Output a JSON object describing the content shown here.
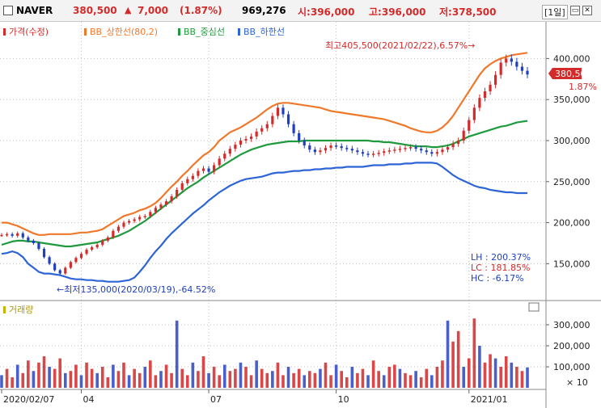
{
  "header": {
    "name": "NAVER",
    "price": "380,500",
    "arrow": "▲",
    "change": "7,000",
    "change_pct": "(1.87%)",
    "volume": "969,276",
    "open": "시:396,000",
    "high": "고:396,000",
    "low": "저:378,500",
    "period_button": "[1일]",
    "min_icon": "minimize-icon",
    "max_icon": "maximize-icon",
    "close_icon": "close-icon"
  },
  "colors": {
    "up": "#d42a2a",
    "down": "#1f3fbf",
    "upper_band": "#f0782a",
    "middle_band": "#1f9a3c",
    "lower_band": "#2d64d6",
    "volume_bar": "#d94848",
    "volume_bar_blue": "#4a60c8"
  },
  "legend": {
    "price": "가격(수정)",
    "upper": "BB_상한선(80,2)",
    "middle": "BB_중심선",
    "lower": "BB_하한선"
  },
  "annotations": {
    "max_label": "최고405,500(2021/02/22),6.57%→",
    "min_label": "←최저135,000(2020/03/19),-64.52%",
    "current_price_tag": "380,500",
    "current_pct_tag": "1.87%",
    "lh": "LH :  200.37%",
    "lc": "LC :  181.85%",
    "hc": "HC :   -6.17%"
  },
  "volume_panel": {
    "label": "거래량",
    "unit": "× 10",
    "y_ticks": [
      "300,000",
      "200,000",
      "100,000"
    ]
  },
  "chart_data": {
    "type": "line",
    "y_ticks": [
      "400,000",
      "350,000",
      "300,000",
      "250,000",
      "200,000",
      "150,000"
    ],
    "x_tick_labels": [
      "2020/02/07",
      "04",
      "07",
      "10",
      "2021/01"
    ],
    "ylim": [
      110000,
      425000
    ],
    "volume_ylim": [
      0,
      350000
    ],
    "price_close": [
      185000,
      186000,
      184000,
      187000,
      182000,
      178000,
      175000,
      168000,
      158000,
      150000,
      142000,
      138000,
      145000,
      152000,
      157000,
      162000,
      167000,
      170000,
      173000,
      178000,
      182000,
      190000,
      195000,
      200000,
      202000,
      204000,
      207000,
      208000,
      213000,
      218000,
      222000,
      226000,
      232000,
      240000,
      248000,
      253000,
      257000,
      263000,
      266000,
      262000,
      270000,
      278000,
      284000,
      290000,
      295000,
      300000,
      302000,
      305000,
      311000,
      315000,
      320000,
      330000,
      340000,
      332000,
      320000,
      309000,
      300000,
      294000,
      289000,
      286000,
      288000,
      291000,
      294000,
      293000,
      291000,
      290000,
      288000,
      286000,
      284000,
      283000,
      284000,
      285000,
      287000,
      288000,
      289000,
      290000,
      291000,
      292000,
      290000,
      288000,
      286000,
      284000,
      286000,
      289000,
      292000,
      296000,
      300000,
      312000,
      325000,
      340000,
      352000,
      360000,
      368000,
      380000,
      395000,
      400000,
      396000,
      390000,
      385000,
      380500
    ],
    "upper_band": [
      200000,
      200000,
      198000,
      196000,
      193000,
      190000,
      187000,
      185000,
      185000,
      186000,
      186000,
      186000,
      186000,
      186000,
      187000,
      188000,
      188000,
      189000,
      190000,
      192000,
      196000,
      200000,
      204000,
      208000,
      210000,
      212000,
      215000,
      217000,
      220000,
      224000,
      230000,
      237000,
      244000,
      250000,
      257000,
      263000,
      270000,
      276000,
      282000,
      286000,
      292000,
      300000,
      305000,
      310000,
      313000,
      316000,
      320000,
      324000,
      328000,
      333000,
      338000,
      342000,
      345000,
      346000,
      346000,
      345000,
      344000,
      343000,
      342000,
      341000,
      340000,
      338000,
      336000,
      335000,
      334000,
      333000,
      332000,
      331000,
      330000,
      329000,
      328000,
      327000,
      326000,
      324000,
      322000,
      320000,
      318000,
      315000,
      313000,
      311000,
      310000,
      310000,
      312000,
      316000,
      322000,
      330000,
      340000,
      350000,
      360000,
      370000,
      380000,
      388000,
      393000,
      397000,
      400000,
      402000,
      404000,
      405000,
      406000,
      407000
    ],
    "middle_band": [
      173000,
      175000,
      177000,
      178000,
      178000,
      177000,
      177000,
      176000,
      175000,
      174000,
      173000,
      172000,
      171000,
      171000,
      172000,
      173000,
      174000,
      175000,
      176000,
      178000,
      180000,
      182000,
      184000,
      187000,
      190000,
      194000,
      198000,
      202000,
      207000,
      212000,
      217000,
      222000,
      227000,
      232000,
      237000,
      242000,
      246000,
      250000,
      255000,
      259000,
      263000,
      267000,
      271000,
      275000,
      279000,
      283000,
      286000,
      289000,
      291000,
      293000,
      295000,
      296000,
      297000,
      298000,
      299000,
      299000,
      299000,
      300000,
      300000,
      300000,
      300000,
      300000,
      300000,
      300000,
      300000,
      300000,
      300000,
      300000,
      300000,
      300000,
      299000,
      299000,
      298000,
      298000,
      297000,
      296000,
      295000,
      294000,
      293000,
      293000,
      293000,
      292000,
      292000,
      293000,
      294000,
      296000,
      299000,
      302000,
      305000,
      307000,
      309000,
      311000,
      313000,
      315000,
      317000,
      318000,
      320000,
      322000,
      323000,
      324000
    ],
    "lower_band": [
      162000,
      163000,
      165000,
      163000,
      158000,
      150000,
      145000,
      140000,
      138000,
      138000,
      137000,
      136000,
      134000,
      132000,
      131000,
      131000,
      130000,
      130000,
      129000,
      129000,
      128000,
      128000,
      128000,
      129000,
      130000,
      133000,
      140000,
      148000,
      157000,
      165000,
      172000,
      180000,
      187000,
      193000,
      199000,
      205000,
      211000,
      216000,
      221000,
      227000,
      232000,
      237000,
      241000,
      245000,
      248000,
      251000,
      253000,
      254000,
      255000,
      256000,
      258000,
      260000,
      261000,
      261000,
      262000,
      263000,
      263000,
      264000,
      264000,
      265000,
      265000,
      266000,
      266000,
      267000,
      267000,
      268000,
      268000,
      268000,
      268000,
      269000,
      270000,
      270000,
      270000,
      271000,
      271000,
      271000,
      272000,
      272000,
      273000,
      273000,
      273000,
      273000,
      272000,
      268000,
      263000,
      258000,
      254000,
      251000,
      248000,
      245000,
      243000,
      242000,
      240000,
      239000,
      238000,
      237000,
      237000,
      236000,
      236000,
      236000
    ],
    "volume": [
      60000,
      90000,
      50000,
      110000,
      70000,
      130000,
      80000,
      120000,
      150000,
      100000,
      90000,
      140000,
      70000,
      80000,
      110000,
      60000,
      120000,
      90000,
      70000,
      100000,
      50000,
      110000,
      80000,
      120000,
      60000,
      90000,
      70000,
      100000,
      130000,
      60000,
      80000,
      110000,
      70000,
      320000,
      90000,
      60000,
      120000,
      80000,
      150000,
      70000,
      100000,
      60000,
      110000,
      80000,
      90000,
      120000,
      100000,
      60000,
      130000,
      90000,
      70000,
      80000,
      120000,
      60000,
      100000,
      70000,
      90000,
      60000,
      80000,
      70000,
      90000,
      120000,
      60000,
      110000,
      80000,
      50000,
      100000,
      70000,
      90000,
      60000,
      130000,
      80000,
      60000,
      100000,
      110000,
      90000,
      70000,
      60000,
      80000,
      50000,
      90000,
      60000,
      100000,
      130000,
      320000,
      220000,
      270000,
      100000,
      140000,
      330000,
      200000,
      120000,
      160000,
      140000,
      100000,
      150000,
      120000,
      100000,
      80000,
      97000
    ]
  }
}
